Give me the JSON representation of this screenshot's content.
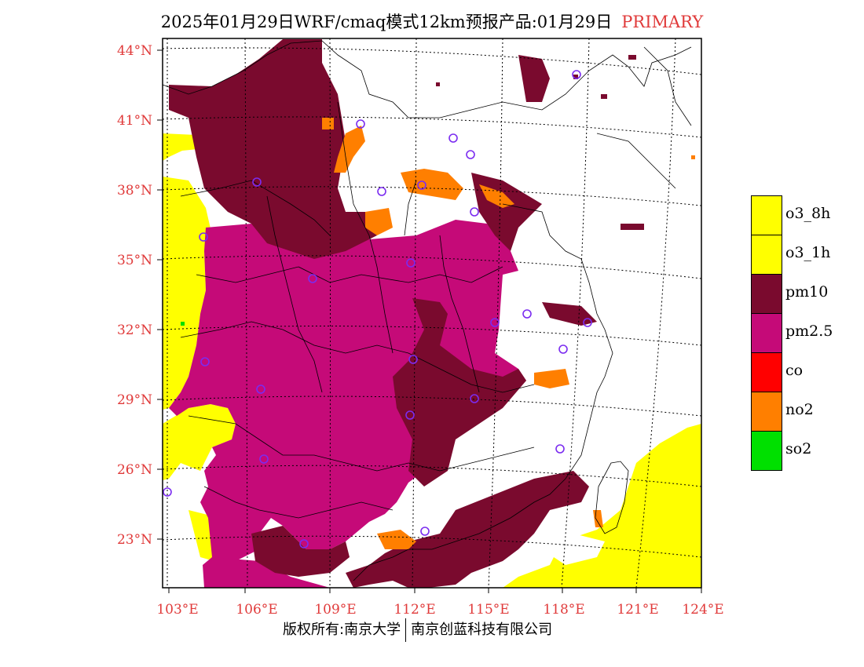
{
  "header": {
    "title": "2025年01月29日WRF/cmaq模式12km预报产品:01月29日",
    "tag": "PRIMARY"
  },
  "map": {
    "lat_labels": [
      "44°N",
      "41°N",
      "38°N",
      "35°N",
      "32°N",
      "29°N",
      "26°N",
      "23°N"
    ],
    "lon_labels": [
      "103°E",
      "106°E",
      "109°E",
      "112°E",
      "115°E",
      "118°E",
      "121°E",
      "124°E"
    ],
    "colors": {
      "pm10": "#7a0a2e",
      "pm25": "#c50a78",
      "o3": "#ffff00",
      "no2": "#ff7f00",
      "co": "#ff0000",
      "so2": "#00e000",
      "station": "#7b2cf0"
    }
  },
  "legend": {
    "items": [
      {
        "label": "o3_8h",
        "color": "#ffff00"
      },
      {
        "label": "o3_1h",
        "color": "#ffff00"
      },
      {
        "label": "pm10",
        "color": "#7a0a2e"
      },
      {
        "label": "pm2.5",
        "color": "#c50a78"
      },
      {
        "label": "co",
        "color": "#ff0000"
      },
      {
        "label": "no2",
        "color": "#ff7f00"
      },
      {
        "label": "so2",
        "color": "#00e000"
      }
    ]
  },
  "footer": {
    "left": "版权所有:南京大学",
    "right": "南京创蓝科技有限公司"
  }
}
